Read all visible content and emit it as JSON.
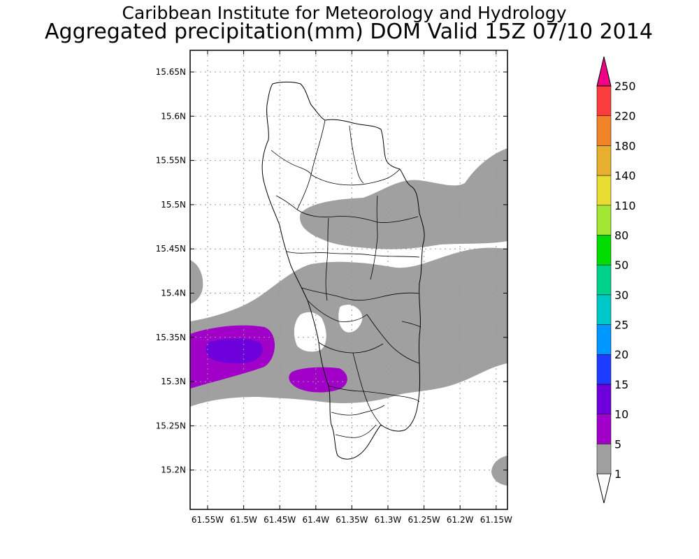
{
  "title_line1": "Caribbean Institute for Meteorology and Hydrology",
  "title_line2": "Aggregated precipitation(mm) DOM Valid 15Z 07/10 2014",
  "lat_labels": [
    "15.65N",
    "15.6N",
    "15.55N",
    "15.5N",
    "15.45N",
    "15.4N",
    "15.35N",
    "15.3N",
    "15.25N",
    "15.2N"
  ],
  "lon_labels": [
    "61.55W",
    "61.5W",
    "61.45W",
    "61.4W",
    "61.35W",
    "61.3W",
    "61.25W",
    "61.2W",
    "61.15W"
  ],
  "colorbar": {
    "levels": [
      "1",
      "5",
      "10",
      "15",
      "20",
      "25",
      "30",
      "50",
      "80",
      "110",
      "140",
      "180",
      "220",
      "250"
    ],
    "colors": [
      "#a0a0a0",
      "#a000c8",
      "#6e00dc",
      "#1e3cff",
      "#0096ff",
      "#00c8c8",
      "#00d28c",
      "#00dc00",
      "#a0e632",
      "#e6dc32",
      "#e6af2d",
      "#f08228",
      "#fa3c3c",
      "#f00082"
    ]
  },
  "colors": {
    "level_1_5": "#a0a0a0",
    "level_5_10": "#a000c8",
    "level_10_15": "#6e00dc",
    "coastline": "#000000",
    "grid": "#999999"
  }
}
